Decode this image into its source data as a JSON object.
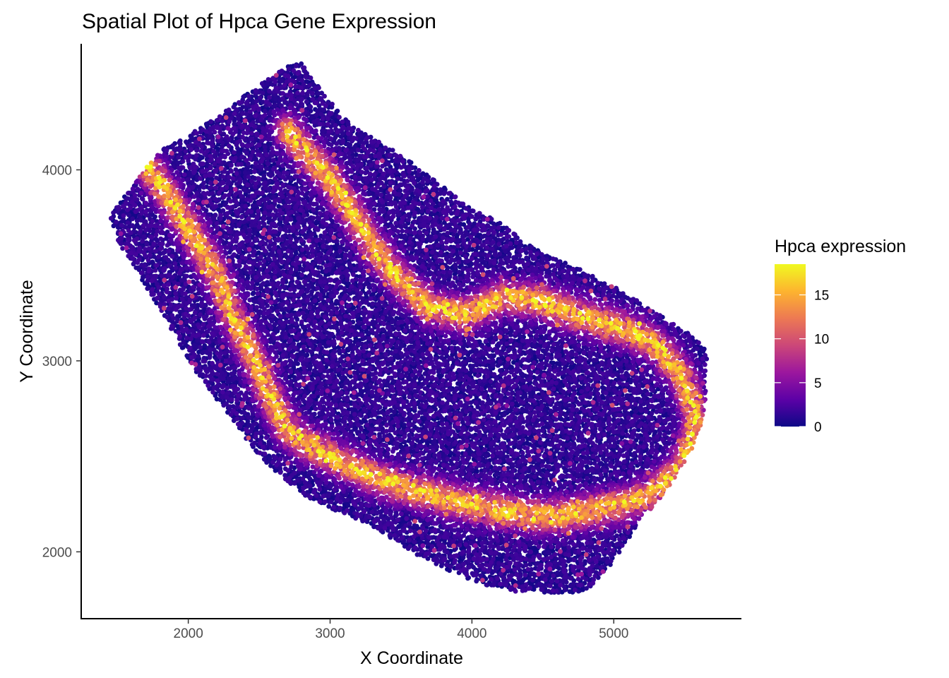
{
  "chart_data": {
    "type": "scatter",
    "title": "Spatial Plot of Hpca Gene Expression",
    "xlabel": "X Coordinate",
    "ylabel": "Y Coordinate",
    "xlim": [
      1250,
      5900
    ],
    "ylim": [
      1650,
      4660
    ],
    "x_ticks": [
      2000,
      3000,
      4000,
      5000
    ],
    "y_ticks": [
      2000,
      3000,
      4000
    ],
    "x_tick_labels": [
      "2000",
      "3000",
      "4000",
      "5000"
    ],
    "y_tick_labels": [
      "2000",
      "3000",
      "4000"
    ],
    "grid": false,
    "legend": {
      "title": "Hpca expression",
      "placement": "right",
      "range": [
        0,
        18.5
      ],
      "ticks": [
        0,
        5,
        10,
        15
      ],
      "tick_labels": [
        "0",
        "5",
        "10",
        "15"
      ],
      "colormap": "plasma",
      "color_stops": [
        "#0d0887",
        "#5c01a6",
        "#9c179e",
        "#cc4778",
        "#ed7953",
        "#fdb42f",
        "#f0f921"
      ]
    },
    "region_outline": [
      [
        1450,
        3760
      ],
      [
        1620,
        3930
      ],
      [
        1780,
        4090
      ],
      [
        2000,
        4180
      ],
      [
        2250,
        4300
      ],
      [
        2500,
        4450
      ],
      [
        2700,
        4540
      ],
      [
        2820,
        4560
      ],
      [
        2950,
        4400
      ],
      [
        3150,
        4230
      ],
      [
        3400,
        4130
      ],
      [
        3700,
        3970
      ],
      [
        3950,
        3820
      ],
      [
        4200,
        3720
      ],
      [
        4500,
        3560
      ],
      [
        4800,
        3470
      ],
      [
        5050,
        3370
      ],
      [
        5300,
        3250
      ],
      [
        5500,
        3160
      ],
      [
        5660,
        3060
      ],
      [
        5640,
        2720
      ],
      [
        5540,
        2520
      ],
      [
        5360,
        2300
      ],
      [
        5180,
        2160
      ],
      [
        5000,
        1950
      ],
      [
        4800,
        1790
      ],
      [
        4500,
        1780
      ],
      [
        4200,
        1800
      ],
      [
        3900,
        1880
      ],
      [
        3600,
        1990
      ],
      [
        3300,
        2130
      ],
      [
        3000,
        2230
      ],
      [
        2800,
        2300
      ],
      [
        2500,
        2500
      ],
      [
        2250,
        2750
      ],
      [
        2050,
        2950
      ],
      [
        1850,
        3200
      ],
      [
        1650,
        3450
      ],
      [
        1500,
        3620
      ]
    ],
    "high_expression_band": [
      [
        1720,
        4010
      ],
      [
        1880,
        3840
      ],
      [
        2000,
        3700
      ],
      [
        2130,
        3540
      ],
      [
        2230,
        3400
      ],
      [
        2320,
        3220
      ],
      [
        2410,
        3090
      ],
      [
        2500,
        2950
      ],
      [
        2600,
        2780
      ],
      [
        2700,
        2640
      ],
      [
        2850,
        2560
      ],
      [
        3050,
        2480
      ],
      [
        3250,
        2410
      ],
      [
        3450,
        2350
      ],
      [
        3650,
        2310
      ],
      [
        3850,
        2270
      ],
      [
        4050,
        2240
      ],
      [
        4250,
        2210
      ],
      [
        4450,
        2190
      ],
      [
        4650,
        2190
      ],
      [
        4850,
        2220
      ],
      [
        5050,
        2250
      ],
      [
        5250,
        2300
      ],
      [
        5450,
        2420
      ],
      [
        5540,
        2560
      ],
      [
        5580,
        2720
      ],
      [
        5480,
        2920
      ],
      [
        5300,
        3080
      ],
      [
        5100,
        3160
      ],
      [
        4900,
        3200
      ],
      [
        4700,
        3250
      ],
      [
        4450,
        3320
      ],
      [
        4200,
        3330
      ],
      [
        3950,
        3240
      ],
      [
        3700,
        3280
      ],
      [
        3500,
        3420
      ],
      [
        3300,
        3600
      ],
      [
        3150,
        3780
      ],
      [
        3000,
        3950
      ],
      [
        2850,
        4080
      ],
      [
        2700,
        4200
      ]
    ],
    "peak_value": 18
  }
}
